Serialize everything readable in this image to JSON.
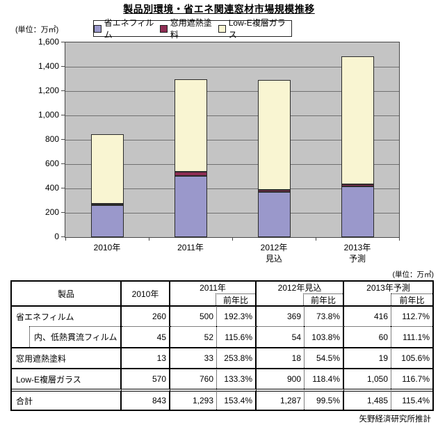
{
  "title": "製品別環境・省エネ関連窓材市場規模推移",
  "chart": {
    "unit_label": "(単位：万㎡)",
    "legend": [
      {
        "label": "省エネフィルム",
        "color": "#9a98cb"
      },
      {
        "label": "窓用遮熱塗料",
        "color": "#8e2d53"
      },
      {
        "label": "Low-E複層ガラス",
        "color": "#f9f5d2"
      }
    ]
  },
  "chart_data": {
    "type": "bar",
    "stacked": true,
    "title": "製品別環境・省エネ関連窓材市場規模推移",
    "ylabel": "(単位：万㎡)",
    "categories": [
      "2010年",
      "2011年",
      "2012年\n見込",
      "2013年\n予測"
    ],
    "series": [
      {
        "name": "省エネフィルム",
        "values": [
          260,
          500,
          369,
          416
        ],
        "color": "#9a98cb"
      },
      {
        "name": "窓用遮熱塗料",
        "values": [
          13,
          33,
          18,
          19
        ],
        "color": "#8e2d53"
      },
      {
        "name": "Low-E複層ガラス",
        "values": [
          570,
          760,
          900,
          1050
        ],
        "color": "#f9f5d2"
      }
    ],
    "totals": [
      843,
      1293,
      1287,
      1485
    ],
    "ylim": [
      0,
      1600
    ],
    "ytick_step": 200,
    "grid": true,
    "legend_position": "top",
    "plot_background": "#c4c4c4"
  },
  "table": {
    "unit_label": "(単位：万㎡)",
    "header": {
      "product": "製品",
      "col2010": "2010年",
      "col2011": "2011年",
      "col2012": "2012年見込",
      "col2013": "2013年予測",
      "yoy": "前年比"
    },
    "rows": [
      {
        "product": "省エネフィルム",
        "v2010": "260",
        "v2011": "500",
        "r2011": "192.3%",
        "v2012": "369",
        "r2012": "73.8%",
        "v2013": "416",
        "r2013": "112.7%"
      },
      {
        "product": "内、低熱貫流フィルム",
        "v2010": "45",
        "v2011": "52",
        "r2011": "115.6%",
        "v2012": "54",
        "r2012": "103.8%",
        "v2013": "60",
        "r2013": "111.1%"
      },
      {
        "product": "窓用遮熱塗料",
        "v2010": "13",
        "v2011": "33",
        "r2011": "253.8%",
        "v2012": "18",
        "r2012": "54.5%",
        "v2013": "19",
        "r2013": "105.6%"
      },
      {
        "product": "Low-E複層ガラス",
        "v2010": "570",
        "v2011": "760",
        "r2011": "133.3%",
        "v2012": "900",
        "r2012": "118.4%",
        "v2013": "1,050",
        "r2013": "116.7%"
      },
      {
        "product": "合計",
        "v2010": "843",
        "v2011": "1,293",
        "r2011": "153.4%",
        "v2012": "1,287",
        "r2012": "99.5%",
        "v2013": "1,485",
        "r2013": "115.4%"
      }
    ]
  },
  "footer": "矢野経済研究所推計"
}
